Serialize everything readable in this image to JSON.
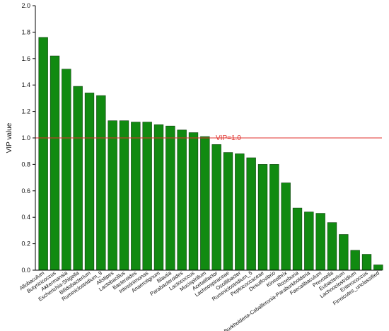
{
  "chart_data": {
    "type": "bar",
    "xlabel": "",
    "ylabel": "VIP value",
    "ylim": [
      0,
      2.0
    ],
    "yticks": [
      0.0,
      0.2,
      0.4,
      0.6,
      0.8,
      1.0,
      1.2,
      1.4,
      1.6,
      1.8,
      2.0
    ],
    "grid": false,
    "bar_color": "#118a11",
    "bar_edge_color": "#0b3d0b",
    "categories": [
      "Allobaculum",
      "Butyricicoccus",
      "Akkermansia",
      "Escherichia-Shigella",
      "Bifidobacterium",
      "Ruminiclostridium_9",
      "Alistipes",
      "Lactobacillus",
      "Bacteroides",
      "Intestinimonas",
      "Anaerotignum",
      "Blautia",
      "Parabacteroides",
      "Lactococcus",
      "Mucispirillum",
      "Acetatifactor",
      "Lachnospiraceae",
      "Oscillibacter",
      "Ruminiclostridium_5",
      "Peptococcaceae",
      "Desulfovibrio",
      "Kineothrix",
      "Roseburia",
      "Burkholderia-Caballeronia-Paraburkholderia",
      "Faecalibaculum",
      "Prevotella",
      "Eubacterium",
      "Lachnoclostridium",
      "Enterococcus",
      "Firmicutes_unclassified"
    ],
    "values": [
      1.76,
      1.62,
      1.52,
      1.39,
      1.34,
      1.32,
      1.13,
      1.13,
      1.12,
      1.12,
      1.1,
      1.09,
      1.06,
      1.04,
      1.01,
      0.95,
      0.89,
      0.88,
      0.85,
      0.8,
      0.8,
      0.66,
      0.47,
      0.44,
      0.43,
      0.36,
      0.27,
      0.15,
      0.12,
      0.04
    ],
    "reference_line": {
      "value": 1.0,
      "label": "VIP=1.0",
      "color": "#e0312c"
    }
  }
}
